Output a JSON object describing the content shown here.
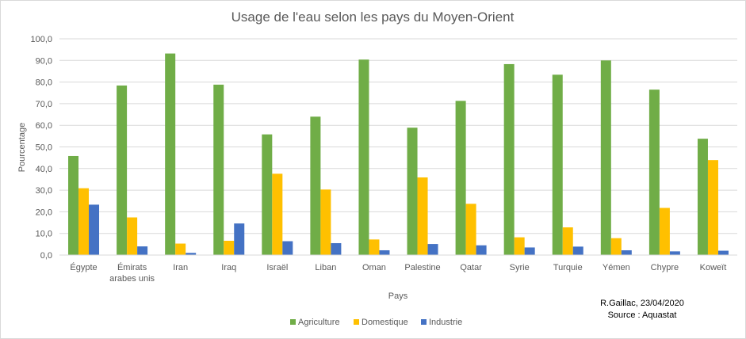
{
  "chart_data": {
    "type": "bar",
    "title": "Usage de l'eau selon les pays du Moyen-Orient",
    "xlabel": "Pays",
    "ylabel": "Pourcentage",
    "ylim": [
      0,
      100
    ],
    "ytick_step": 10,
    "ytick_labels": [
      "0,0",
      "10,0",
      "20,0",
      "30,0",
      "40,0",
      "50,0",
      "60,0",
      "70,0",
      "80,0",
      "90,0",
      "100,0"
    ],
    "grid": true,
    "legend_position": "bottom",
    "categories": [
      "Égypte",
      "Émirats arabes unis",
      "Iran",
      "Iraq",
      "Israël",
      "Liban",
      "Oman",
      "Palestine",
      "Qatar",
      "Syrie",
      "Turquie",
      "Yémen",
      "Chypre",
      "Koweït"
    ],
    "series": [
      {
        "name": "Agriculture",
        "color": "#70ad47",
        "values": [
          45.8,
          78.4,
          93.2,
          78.8,
          55.8,
          64.0,
          90.4,
          58.9,
          71.3,
          88.3,
          83.4,
          90.0,
          76.5,
          53.8
        ]
      },
      {
        "name": "Domestique",
        "color": "#ffc000",
        "values": [
          30.9,
          17.4,
          5.3,
          6.6,
          37.6,
          30.3,
          7.2,
          35.9,
          23.7,
          8.2,
          12.8,
          7.8,
          21.8,
          43.9
        ]
      },
      {
        "name": "Industrie",
        "color": "#4472c4",
        "values": [
          23.3,
          4.0,
          1.0,
          14.6,
          6.4,
          5.5,
          2.2,
          5.1,
          4.5,
          3.5,
          3.9,
          2.2,
          1.7,
          2.0
        ]
      }
    ]
  },
  "credit": {
    "line1": "R.Gaillac, 23/04/2020",
    "line2": "Source : Aquastat"
  }
}
